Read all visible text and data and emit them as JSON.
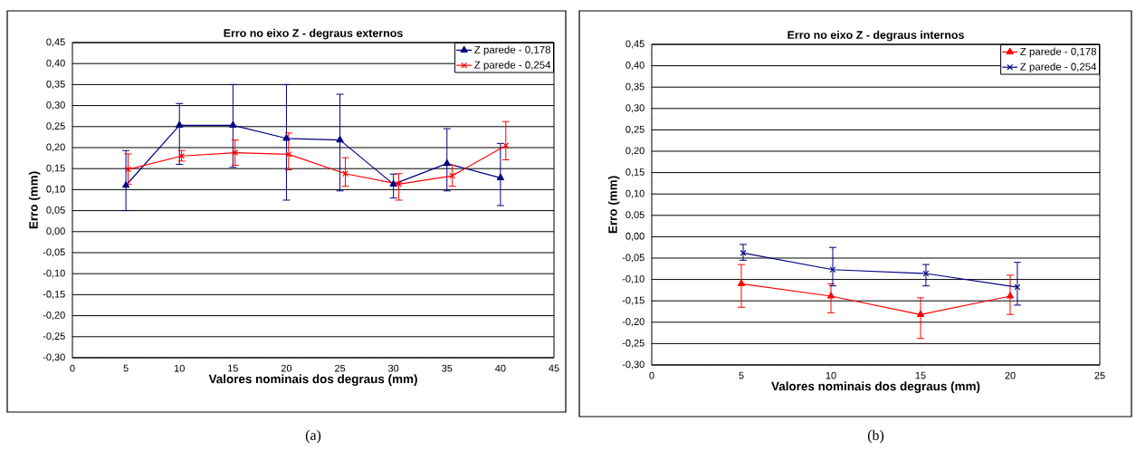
{
  "chart_data": [
    {
      "type": "line",
      "title": "Erro no eixo Z - degraus externos",
      "xlabel": "Valores nominais dos degraus (mm)",
      "ylabel": "Erro (mm)",
      "annotations": [
        "(a)"
      ],
      "xlim": [
        0,
        45
      ],
      "xticks": [
        0,
        5,
        10,
        15,
        20,
        25,
        30,
        35,
        40,
        45
      ],
      "ylim": [
        -0.3,
        0.45
      ],
      "yticks": [
        {
          "value": -0.3,
          "label": "-0,30"
        },
        {
          "value": -0.25,
          "label": "-0,25"
        },
        {
          "value": -0.2,
          "label": "-0,20"
        },
        {
          "value": -0.15,
          "label": "-0,15"
        },
        {
          "value": -0.1,
          "label": "-0,10"
        },
        {
          "value": -0.05,
          "label": "-0,05"
        },
        {
          "value": 0,
          "label": "0,00"
        },
        {
          "value": 0.05,
          "label": "0,05"
        },
        {
          "value": 0.1,
          "label": "0,10"
        },
        {
          "value": 0.15,
          "label": "0,15"
        },
        {
          "value": 0.2,
          "label": "0,20"
        },
        {
          "value": 0.25,
          "label": "0,25"
        },
        {
          "value": 0.3,
          "label": "0,30"
        },
        {
          "value": 0.35,
          "label": "0,35"
        },
        {
          "value": 0.4,
          "label": "0,40"
        },
        {
          "value": 0.45,
          "label": "0,45"
        }
      ],
      "grid": "y",
      "legend": "top right",
      "series": [
        {
          "name": "Z parede - 0,178",
          "color": "#000080",
          "marker": "triangle",
          "x": [
            5,
            10,
            15,
            20,
            25,
            30,
            35,
            40
          ],
          "values": [
            0.11,
            0.253,
            0.253,
            0.222,
            0.218,
            0.113,
            0.162,
            0.128
          ],
          "errors": [
            [
              0.05,
              0.193
            ],
            [
              0.16,
              0.305
            ],
            [
              0.153,
              0.35
            ],
            [
              0.075,
              0.35
            ],
            [
              0.097,
              0.327
            ],
            [
              0.08,
              0.137
            ],
            [
              0.097,
              0.245
            ],
            [
              0.062,
              0.21
            ]
          ]
        },
        {
          "name": "Z parede - 0,254",
          "color": "#ff0000",
          "marker": "cross",
          "x": [
            5.2,
            10.2,
            15.2,
            20.2,
            25.5,
            30.5,
            35.5,
            40.5
          ],
          "values": [
            0.148,
            0.18,
            0.188,
            0.184,
            0.138,
            0.113,
            0.133,
            0.205
          ],
          "errors": [
            [
              0.113,
              0.185
            ],
            [
              0.168,
              0.193
            ],
            [
              0.158,
              0.218
            ],
            [
              0.147,
              0.235
            ],
            [
              0.108,
              0.176
            ],
            [
              0.075,
              0.138
            ],
            [
              0.108,
              0.158
            ],
            [
              0.171,
              0.262
            ]
          ]
        }
      ]
    },
    {
      "type": "line",
      "title": "Erro no eixo Z - degraus internos",
      "xlabel": "Valores nominais dos degraus (mm)",
      "ylabel": "Erro (mm)",
      "annotations": [
        "(b)"
      ],
      "xlim": [
        0,
        25
      ],
      "xticks": [
        0,
        5,
        10,
        15,
        20,
        25
      ],
      "ylim": [
        -0.3,
        0.45
      ],
      "yticks": [
        {
          "value": -0.3,
          "label": "-0,30"
        },
        {
          "value": -0.25,
          "label": "-0,25"
        },
        {
          "value": -0.2,
          "label": "-0,20"
        },
        {
          "value": -0.15,
          "label": "-0,15"
        },
        {
          "value": -0.1,
          "label": "-0,10"
        },
        {
          "value": -0.05,
          "label": "-0,05"
        },
        {
          "value": 0,
          "label": "0,00"
        },
        {
          "value": 0.05,
          "label": "0,05"
        },
        {
          "value": 0.1,
          "label": "0,10"
        },
        {
          "value": 0.15,
          "label": "0,15"
        },
        {
          "value": 0.2,
          "label": "0,20"
        },
        {
          "value": 0.25,
          "label": "0,25"
        },
        {
          "value": 0.3,
          "label": "0,30"
        },
        {
          "value": 0.35,
          "label": "0,35"
        },
        {
          "value": 0.4,
          "label": "0,40"
        },
        {
          "value": 0.45,
          "label": "0,45"
        }
      ],
      "grid": "y",
      "legend": "top right",
      "series": [
        {
          "name": "Z parede - 0,178",
          "color": "#ff0000",
          "marker": "triangle",
          "x": [
            5,
            10,
            15,
            20
          ],
          "values": [
            -0.11,
            -0.139,
            -0.182,
            -0.139
          ],
          "errors": [
            [
              -0.165,
              -0.065
            ],
            [
              -0.178,
              -0.11
            ],
            [
              -0.238,
              -0.143
            ],
            [
              -0.182,
              -0.09
            ]
          ]
        },
        {
          "name": "Z parede - 0,254",
          "color": "#000080",
          "marker": "cross",
          "x": [
            5.1,
            10.1,
            15.3,
            20.4
          ],
          "values": [
            -0.038,
            -0.077,
            -0.086,
            -0.118
          ],
          "errors": [
            [
              -0.055,
              -0.018
            ],
            [
              -0.115,
              -0.025
            ],
            [
              -0.115,
              -0.065
            ],
            [
              -0.16,
              -0.06
            ]
          ]
        }
      ]
    }
  ]
}
